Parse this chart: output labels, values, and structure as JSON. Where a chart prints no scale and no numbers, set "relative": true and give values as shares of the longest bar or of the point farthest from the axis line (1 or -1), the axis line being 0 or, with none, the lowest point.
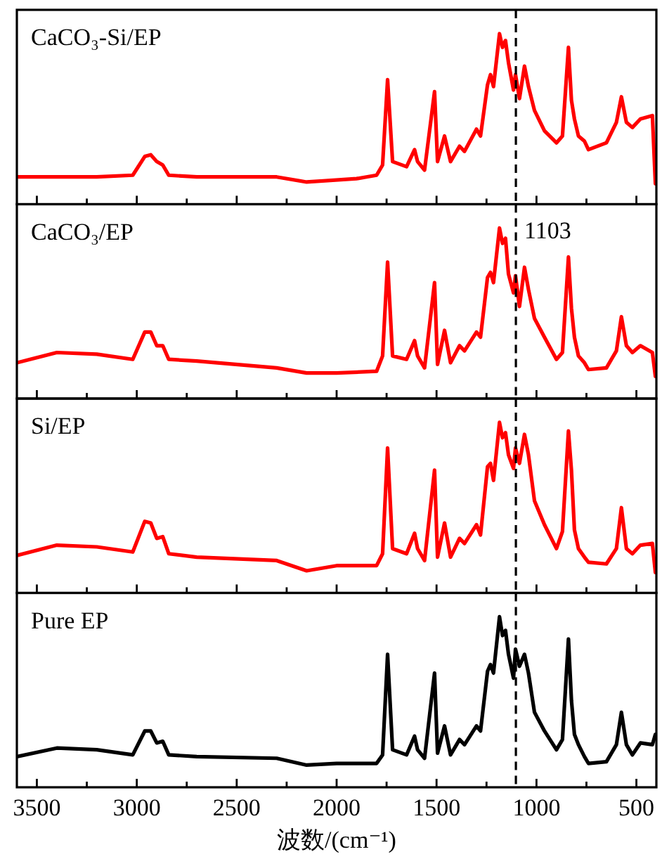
{
  "chart_data": [
    {
      "type": "line",
      "title": "CaCO₃-Si/EP",
      "relative": true,
      "xlim": [
        3600,
        400
      ],
      "xticks": [
        3500,
        {
          "value": 3250,
          "label": null
        },
        3000,
        {
          "value": 2750,
          "label": null
        },
        2500,
        {
          "value": 2250,
          "label": null
        },
        2000,
        {
          "value": 1750,
          "label": null
        },
        1500,
        {
          "value": 1250,
          "label": null
        },
        1000,
        {
          "value": 750,
          "label": null
        },
        500
      ],
      "tick_labels": false,
      "ref_lines": [
        {
          "axis": "x",
          "value": 1103,
          "line_style": "dashed",
          "color": "#000000"
        }
      ],
      "series": [
        {
          "color": "#ff0000",
          "x": [
            3600,
            3200,
            3020,
            2960,
            2930,
            2900,
            2870,
            2840,
            2700,
            2300,
            2150,
            1900,
            1800,
            1770,
            1745,
            1720,
            1650,
            1610,
            1595,
            1560,
            1510,
            1495,
            1460,
            1430,
            1385,
            1360,
            1300,
            1280,
            1245,
            1230,
            1215,
            1185,
            1170,
            1155,
            1140,
            1115,
            1105,
            1085,
            1060,
            1040,
            1010,
            960,
            900,
            870,
            840,
            825,
            810,
            790,
            760,
            740,
            650,
            600,
            575,
            550,
            520,
            480,
            420,
            405
          ],
          "values": [
            0.16,
            0.16,
            0.17,
            0.28,
            0.29,
            0.25,
            0.23,
            0.17,
            0.16,
            0.16,
            0.13,
            0.15,
            0.17,
            0.23,
            0.73,
            0.25,
            0.22,
            0.32,
            0.25,
            0.2,
            0.66,
            0.25,
            0.4,
            0.25,
            0.34,
            0.31,
            0.44,
            0.4,
            0.7,
            0.76,
            0.69,
            1,
            0.92,
            0.96,
            0.83,
            0.67,
            0.76,
            0.62,
            0.81,
            0.69,
            0.55,
            0.43,
            0.36,
            0.4,
            0.92,
            0.61,
            0.5,
            0.4,
            0.37,
            0.32,
            0.36,
            0.48,
            0.63,
            0.48,
            0.45,
            0.5,
            0.52,
            0.12
          ]
        }
      ]
    },
    {
      "type": "line",
      "title": "CaCO₃/EP",
      "relative": true,
      "xlim": [
        3600,
        400
      ],
      "xticks": [
        3500,
        {
          "value": 3250,
          "label": null
        },
        3000,
        {
          "value": 2750,
          "label": null
        },
        2500,
        {
          "value": 2250,
          "label": null
        },
        2000,
        {
          "value": 1750,
          "label": null
        },
        1500,
        {
          "value": 1250,
          "label": null
        },
        1000,
        {
          "value": 750,
          "label": null
        },
        500
      ],
      "tick_labels": false,
      "ref_lines": [
        {
          "axis": "x",
          "value": 1103,
          "label": "1103",
          "line_style": "dashed",
          "color": "#000000"
        }
      ],
      "series": [
        {
          "color": "#ff0000",
          "x": [
            3600,
            3400,
            3200,
            3020,
            2960,
            2930,
            2900,
            2870,
            2840,
            2700,
            2300,
            2150,
            2000,
            1800,
            1770,
            1745,
            1720,
            1650,
            1610,
            1595,
            1560,
            1510,
            1495,
            1460,
            1430,
            1385,
            1360,
            1300,
            1280,
            1245,
            1230,
            1215,
            1185,
            1170,
            1155,
            1140,
            1115,
            1105,
            1085,
            1060,
            1040,
            1010,
            960,
            900,
            870,
            840,
            825,
            810,
            790,
            760,
            740,
            650,
            600,
            575,
            550,
            520,
            480,
            420,
            405
          ],
          "values": [
            0.21,
            0.27,
            0.26,
            0.23,
            0.39,
            0.39,
            0.31,
            0.31,
            0.23,
            0.22,
            0.18,
            0.15,
            0.15,
            0.16,
            0.25,
            0.8,
            0.25,
            0.23,
            0.34,
            0.25,
            0.18,
            0.68,
            0.2,
            0.4,
            0.21,
            0.31,
            0.28,
            0.39,
            0.36,
            0.71,
            0.74,
            0.68,
            1,
            0.91,
            0.94,
            0.73,
            0.62,
            0.72,
            0.54,
            0.77,
            0.64,
            0.47,
            0.36,
            0.23,
            0.27,
            0.83,
            0.53,
            0.36,
            0.25,
            0.21,
            0.17,
            0.18,
            0.28,
            0.48,
            0.31,
            0.27,
            0.31,
            0.27,
            0.13
          ]
        }
      ]
    },
    {
      "type": "line",
      "title": "Si/EP",
      "relative": true,
      "xlim": [
        3600,
        400
      ],
      "xticks": [
        3500,
        {
          "value": 3250,
          "label": null
        },
        3000,
        {
          "value": 2750,
          "label": null
        },
        2500,
        {
          "value": 2250,
          "label": null
        },
        2000,
        {
          "value": 1750,
          "label": null
        },
        1500,
        {
          "value": 1250,
          "label": null
        },
        1000,
        {
          "value": 750,
          "label": null
        },
        500
      ],
      "tick_labels": false,
      "ref_lines": [
        {
          "axis": "x",
          "value": 1103,
          "line_style": "dashed",
          "color": "#000000"
        }
      ],
      "series": [
        {
          "color": "#ff0000",
          "x": [
            3600,
            3400,
            3200,
            3020,
            2960,
            2930,
            2900,
            2870,
            2840,
            2700,
            2300,
            2150,
            2000,
            1800,
            1770,
            1745,
            1720,
            1650,
            1610,
            1595,
            1560,
            1510,
            1495,
            1460,
            1430,
            1385,
            1360,
            1300,
            1280,
            1245,
            1230,
            1215,
            1185,
            1170,
            1155,
            1140,
            1115,
            1105,
            1085,
            1060,
            1040,
            1010,
            960,
            900,
            870,
            840,
            825,
            810,
            790,
            760,
            740,
            650,
            600,
            575,
            550,
            520,
            480,
            420,
            405
          ],
          "values": [
            0.22,
            0.28,
            0.27,
            0.24,
            0.42,
            0.41,
            0.32,
            0.33,
            0.23,
            0.21,
            0.19,
            0.13,
            0.16,
            0.16,
            0.23,
            0.85,
            0.26,
            0.23,
            0.35,
            0.26,
            0.19,
            0.72,
            0.21,
            0.41,
            0.21,
            0.32,
            0.29,
            0.4,
            0.34,
            0.74,
            0.76,
            0.66,
            1,
            0.91,
            0.94,
            0.81,
            0.73,
            0.85,
            0.76,
            0.93,
            0.81,
            0.54,
            0.4,
            0.26,
            0.36,
            0.95,
            0.72,
            0.37,
            0.26,
            0.21,
            0.18,
            0.17,
            0.26,
            0.5,
            0.26,
            0.23,
            0.28,
            0.29,
            0.12
          ]
        }
      ]
    },
    {
      "type": "line",
      "title": "Pure EP",
      "xlabel": "波数/(cm⁻¹)",
      "relative": true,
      "xlim": [
        3600,
        400
      ],
      "xticks": [
        3500,
        {
          "value": 3250,
          "label": null
        },
        3000,
        {
          "value": 2750,
          "label": null
        },
        2500,
        {
          "value": 2250,
          "label": null
        },
        2000,
        {
          "value": 1750,
          "label": null
        },
        1500,
        {
          "value": 1250,
          "label": null
        },
        1000,
        {
          "value": 750,
          "label": null
        },
        500
      ],
      "tick_labels": "x",
      "ref_lines": [
        {
          "axis": "x",
          "value": 1103,
          "line_style": "dashed",
          "color": "#000000"
        }
      ],
      "series": [
        {
          "color": "#000000",
          "x": [
            3600,
            3400,
            3200,
            3020,
            2960,
            2930,
            2900,
            2870,
            2840,
            2700,
            2300,
            2150,
            2000,
            1800,
            1770,
            1745,
            1720,
            1650,
            1610,
            1595,
            1560,
            1510,
            1495,
            1460,
            1430,
            1385,
            1360,
            1300,
            1280,
            1245,
            1230,
            1215,
            1185,
            1170,
            1155,
            1140,
            1115,
            1105,
            1085,
            1060,
            1040,
            1010,
            960,
            900,
            870,
            840,
            825,
            810,
            790,
            760,
            740,
            650,
            600,
            575,
            550,
            520,
            480,
            420,
            405
          ],
          "values": [
            0.18,
            0.23,
            0.22,
            0.19,
            0.33,
            0.33,
            0.26,
            0.27,
            0.19,
            0.18,
            0.17,
            0.13,
            0.14,
            0.14,
            0.19,
            0.78,
            0.22,
            0.19,
            0.3,
            0.22,
            0.17,
            0.67,
            0.2,
            0.36,
            0.19,
            0.28,
            0.25,
            0.36,
            0.33,
            0.68,
            0.72,
            0.67,
            1,
            0.89,
            0.92,
            0.78,
            0.64,
            0.81,
            0.71,
            0.78,
            0.67,
            0.44,
            0.33,
            0.22,
            0.28,
            0.87,
            0.51,
            0.31,
            0.25,
            0.18,
            0.14,
            0.15,
            0.25,
            0.44,
            0.25,
            0.19,
            0.26,
            0.25,
            0.31
          ]
        }
      ]
    }
  ]
}
